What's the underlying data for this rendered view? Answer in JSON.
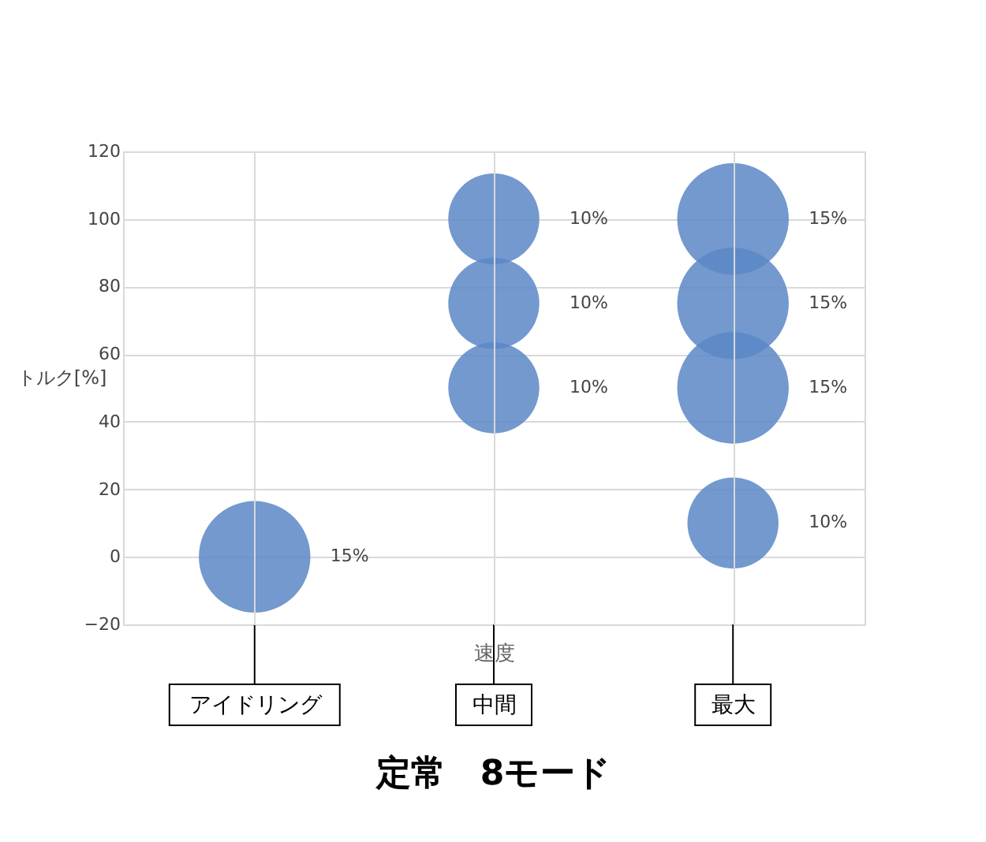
{
  "chart_data": {
    "type": "bubble",
    "title": "定常　8モード",
    "xlabel": "速度",
    "ylabel": "トルク[%]",
    "categories": [
      "アイドリング",
      "中間",
      "最大"
    ],
    "series": [
      {
        "color": "#5b87c5",
        "x": [
          "アイドリング",
          "中間",
          "中間",
          "中間",
          "最大",
          "最大",
          "最大",
          "最大"
        ],
        "values": [
          0,
          100,
          75,
          50,
          100,
          75,
          50,
          10
        ],
        "sizes": [
          15,
          10,
          10,
          10,
          15,
          15,
          15,
          10
        ],
        "value_labels": [
          "15%",
          "10%",
          "10%",
          "10%",
          "15%",
          "15%",
          "15%",
          "10%"
        ]
      }
    ],
    "ylim": [
      -20,
      120
    ],
    "yticks": [
      -20,
      0,
      20,
      40,
      60,
      80,
      100,
      120
    ],
    "grid": true,
    "legend": false
  }
}
